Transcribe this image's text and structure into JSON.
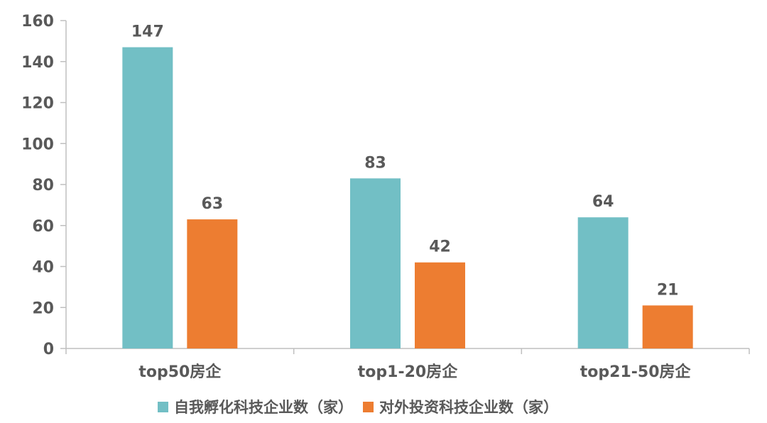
{
  "chart_data": {
    "type": "bar",
    "categories": [
      "top50房企",
      "top1-20房企",
      "top21-50房企"
    ],
    "series": [
      {
        "name": "自我孵化科技企业数（家）",
        "values": [
          147,
          83,
          64
        ],
        "color": "#72BFC5"
      },
      {
        "name": "对外投资科技企业数（家）",
        "values": [
          63,
          42,
          21
        ],
        "color": "#ED7D31"
      }
    ],
    "ylim": [
      0,
      160
    ],
    "yticks": [
      0,
      20,
      40,
      60,
      80,
      100,
      120,
      140,
      160
    ],
    "grid": false,
    "legend": "bottom",
    "data_labels": true
  }
}
